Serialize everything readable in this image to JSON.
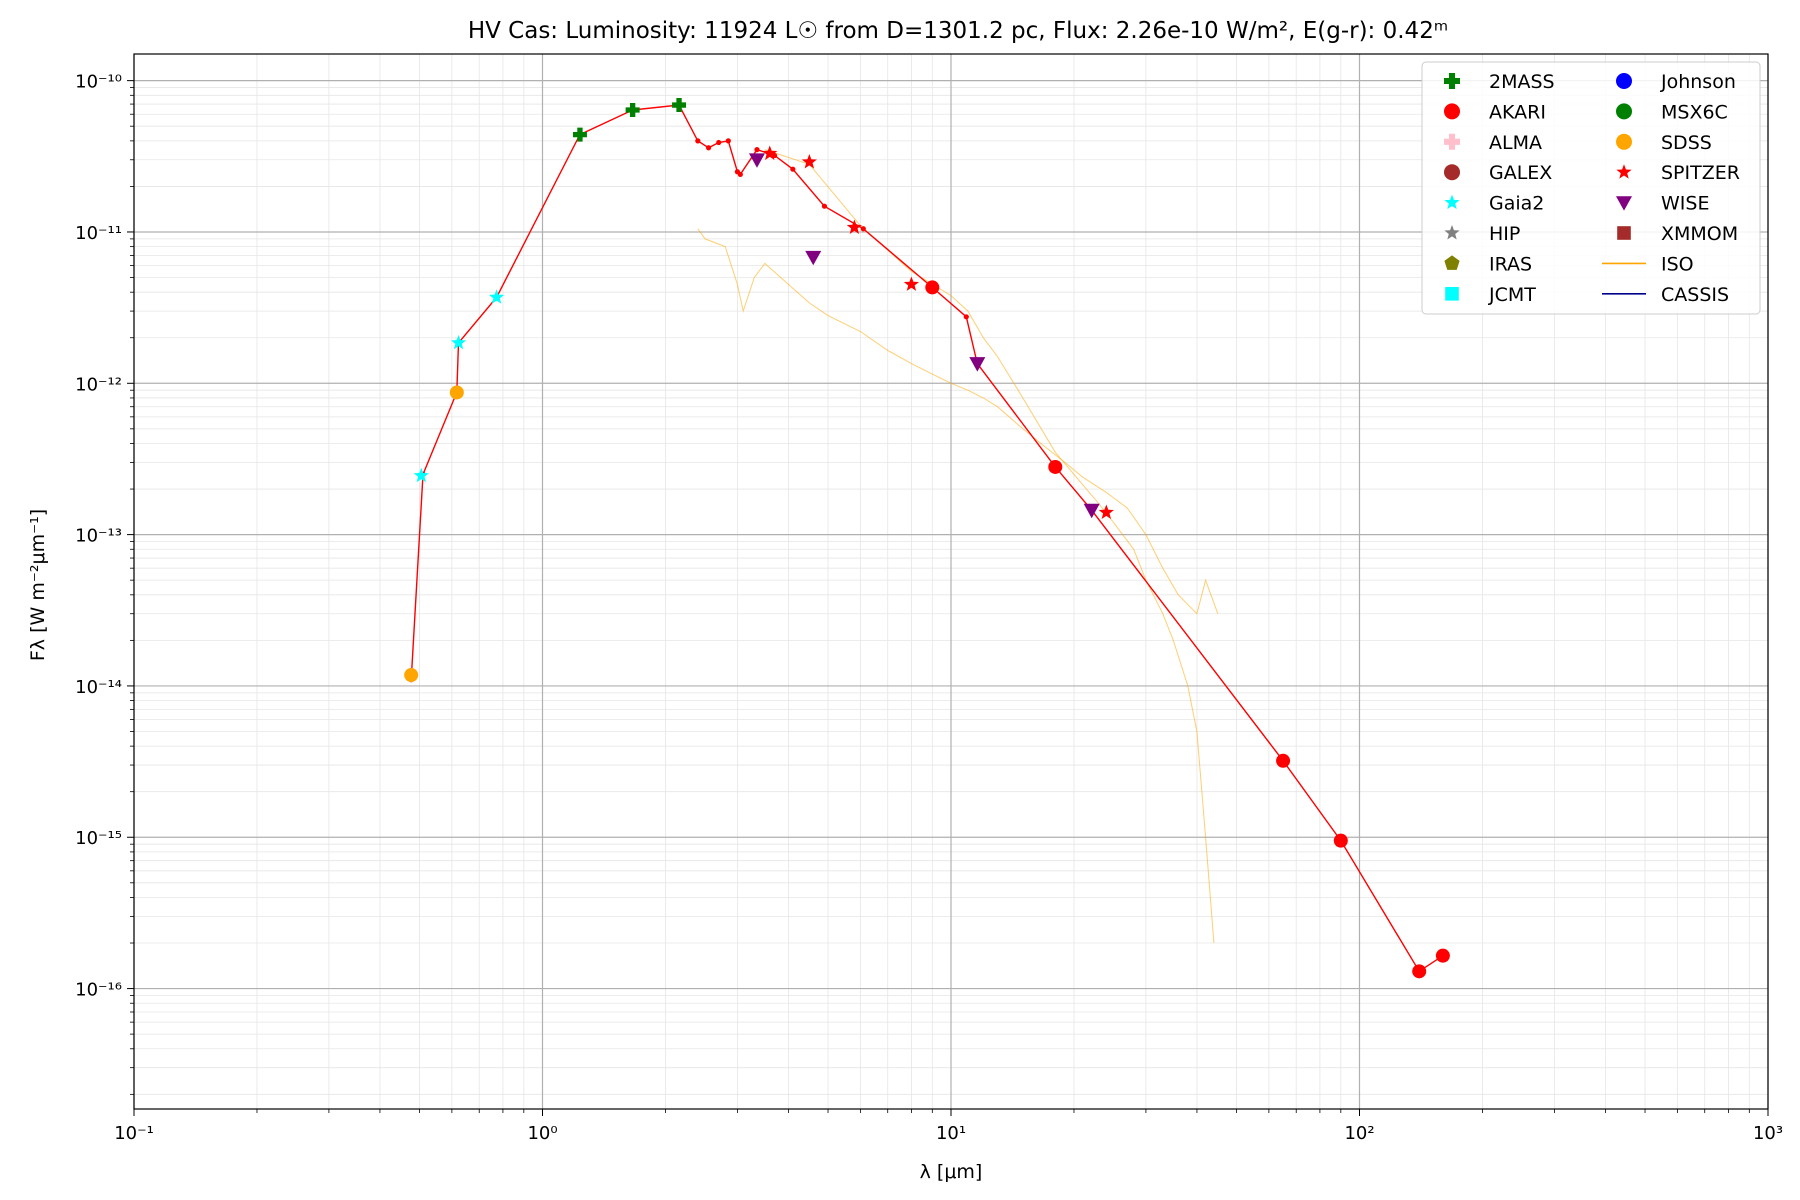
{
  "chart_data": {
    "type": "scatter",
    "title": "HV Cas:  Luminosity: 11924 L☉ from D=1301.2 pc, Flux: 2.26e-10 W/m², E(g-r): 0.42ᵐ",
    "xlabel": "λ [μm]",
    "ylabel": "Fλ [W m⁻²μm⁻¹]",
    "xscale": "log",
    "yscale": "log",
    "xlim": [
      0.1,
      1000
    ],
    "ylim": [
      1.6e-17,
      1.5e-10
    ],
    "grid": true,
    "legend_position": "top-right",
    "x_tick_labels": [
      "10⁻¹",
      "10⁰",
      "10¹",
      "10²",
      "10³"
    ],
    "y_tick_labels": [
      "10⁻¹⁶",
      "10⁻¹⁵",
      "10⁻¹⁴",
      "10⁻¹³",
      "10⁻¹²",
      "10⁻¹¹",
      "10⁻¹⁰"
    ],
    "legend": [
      {
        "name": "2MASS",
        "marker": "plus",
        "color": "#008000"
      },
      {
        "name": "AKARI",
        "marker": "circle",
        "color": "#ff0000"
      },
      {
        "name": "ALMA",
        "marker": "plus",
        "color": "#ffc0cb"
      },
      {
        "name": "GALEX",
        "marker": "circle",
        "color": "#a52a2a"
      },
      {
        "name": "Gaia2",
        "marker": "star",
        "color": "#00ffff"
      },
      {
        "name": "HIP",
        "marker": "star",
        "color": "#808080"
      },
      {
        "name": "IRAS",
        "marker": "pentagon",
        "color": "#808000"
      },
      {
        "name": "JCMT",
        "marker": "square",
        "color": "#00ffff"
      },
      {
        "name": "Johnson",
        "marker": "circle",
        "color": "#0000ff"
      },
      {
        "name": "MSX6C",
        "marker": "circle",
        "color": "#008000"
      },
      {
        "name": "SDSS",
        "marker": "circle",
        "color": "#ffa500"
      },
      {
        "name": "SPITZER",
        "marker": "star",
        "color": "#ff0000"
      },
      {
        "name": "WISE",
        "marker": "triangle-down",
        "color": "#800080"
      },
      {
        "name": "XMMOM",
        "marker": "square",
        "color": "#a52a2a"
      },
      {
        "name": "ISO",
        "marker": "line",
        "color": "#ffa500"
      },
      {
        "name": "CASSIS",
        "marker": "line",
        "color": "#00008b"
      }
    ],
    "series": [
      {
        "name": "2MASS",
        "marker": "plus",
        "color": "#008000",
        "x": [
          1.235,
          1.662,
          2.159
        ],
        "y": [
          4.4e-11,
          6.4e-11,
          6.9e-11
        ]
      },
      {
        "name": "AKARI",
        "marker": "circle",
        "color": "#ff0000",
        "x": [
          9.0,
          18.0,
          65.0,
          90.0,
          140.0,
          160.0
        ],
        "y": [
          4.3e-12,
          2.8e-13,
          3.2e-15,
          9.5e-16,
          1.3e-16,
          1.65e-16
        ]
      },
      {
        "name": "Gaia2",
        "marker": "star",
        "color": "#00ffff",
        "x": [
          0.505,
          0.623,
          0.772
        ],
        "y": [
          2.45e-13,
          1.85e-12,
          3.7e-12
        ]
      },
      {
        "name": "SDSS",
        "marker": "circle",
        "color": "#ffa500",
        "x": [
          0.477,
          0.617
        ],
        "y": [
          1.18e-14,
          8.7e-13
        ]
      },
      {
        "name": "SPITZER",
        "marker": "star",
        "color": "#ff0000",
        "x": [
          3.6,
          4.5,
          5.8,
          8.0,
          24.0
        ],
        "y": [
          3.3e-11,
          2.9e-11,
          1.07e-11,
          4.5e-12,
          1.4e-13
        ]
      },
      {
        "name": "WISE",
        "marker": "triangle-down",
        "color": "#800080",
        "x": [
          3.35,
          4.6,
          11.6,
          22.1
        ],
        "y": [
          3e-11,
          6.8e-12,
          1.35e-12,
          1.45e-13
        ]
      },
      {
        "name": "SED",
        "marker": "line-dots",
        "color": "#ff0000",
        "x": [
          0.477,
          0.51,
          0.617,
          0.623,
          0.772,
          1.235,
          1.662,
          2.159,
          2.4,
          2.55,
          2.7,
          2.85,
          3.0,
          3.05,
          3.35,
          3.7,
          4.1,
          4.9,
          6.1,
          9.0,
          10.9,
          11.6,
          18.0,
          22.1,
          65.0,
          90.0,
          140.0,
          160.0
        ],
        "y": [
          1.1e-14,
          2.5e-13,
          8.7e-13,
          1.85e-12,
          3.7e-12,
          4.4e-11,
          6.4e-11,
          6.9e-11,
          4e-11,
          3.6e-11,
          3.9e-11,
          4e-11,
          2.5e-11,
          2.4e-11,
          3.5e-11,
          3.2e-11,
          2.6e-11,
          1.48e-11,
          1.05e-11,
          4.3e-12,
          2.75e-12,
          1.35e-12,
          2.8e-13,
          1.45e-13,
          3.2e-15,
          9.5e-16,
          1.3e-16,
          1.65e-16
        ]
      },
      {
        "name": "ISO",
        "marker": "line",
        "color": "#ffa500",
        "x": [
          2.4,
          2.5,
          2.8,
          3.0,
          3.1,
          3.3,
          3.5,
          4.0,
          4.5,
          5.0,
          6.0,
          7.0,
          8.0,
          9.0,
          10.0,
          11.0,
          12.0,
          13.0,
          15.0,
          17.0,
          19.0,
          21.0,
          24.0,
          27.0,
          30.0,
          33.0,
          36.0,
          40.0,
          42.0,
          45.0
        ],
        "y": [
          1.05e-11,
          9e-12,
          8e-12,
          4.5e-12,
          3e-12,
          5e-12,
          6.2e-12,
          4.5e-12,
          3.4e-12,
          2.8e-12,
          2.2e-12,
          1.65e-12,
          1.35e-12,
          1.15e-12,
          1e-12,
          9e-13,
          8e-13,
          7e-13,
          5e-13,
          3.8e-13,
          3e-13,
          2.4e-13,
          1.9e-13,
          1.5e-13,
          1e-13,
          6e-14,
          4e-14,
          3e-14,
          5e-14,
          3e-14
        ]
      },
      {
        "name": "ISO-2",
        "marker": "line",
        "color": "#ffa500",
        "x": [
          3.5,
          4.5,
          6.0,
          8.0,
          10.0,
          11.0,
          12.0,
          13.0,
          15.0,
          18.0,
          20.0,
          23.0,
          25.0,
          28.0,
          30.0,
          33.0,
          35.0,
          38.0,
          40.0,
          42.0,
          44.0
        ],
        "y": [
          3.5e-11,
          2.8e-11,
          1.1e-11,
          5.5e-12,
          3.8e-12,
          3e-12,
          2e-12,
          1.5e-12,
          8e-13,
          3.5e-13,
          2.5e-13,
          1.6e-13,
          1.2e-13,
          8e-14,
          5e-14,
          3e-14,
          2e-14,
          1e-14,
          5e-15,
          1e-15,
          2e-16
        ]
      }
    ]
  }
}
